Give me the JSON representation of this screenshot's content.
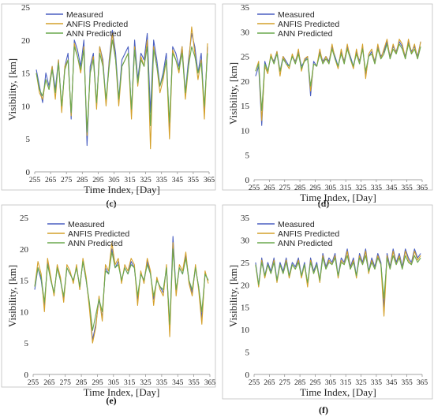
{
  "colors": {
    "measured": "#4a5fc1",
    "anfis": "#d4a02a",
    "ann": "#6aa84f",
    "frame": "#bfbfbf"
  },
  "chart_data": [
    {
      "type": "line",
      "panel_label": "(c)",
      "xlabel": "Time Index, [Day]",
      "ylabel": "Visibility, [km]",
      "xlim": [
        255,
        365
      ],
      "ylim": [
        0,
        25
      ],
      "xticks": [
        "255",
        "265",
        "275",
        "285",
        "295",
        "305",
        "315",
        "325",
        "335",
        "345",
        "355",
        "365"
      ],
      "yticks": [
        "0",
        "5",
        "10",
        "15",
        "20",
        "25"
      ],
      "legend_position": "top-left",
      "x": [
        256,
        258,
        260,
        262,
        264,
        266,
        268,
        270,
        272,
        274,
        276,
        278,
        280,
        282,
        284,
        286,
        288,
        290,
        292,
        294,
        296,
        298,
        300,
        302,
        304,
        306,
        308,
        310,
        312,
        314,
        316,
        318,
        320,
        322,
        324,
        326,
        328,
        330,
        332,
        334,
        336,
        338,
        340,
        342,
        344,
        346,
        348,
        350,
        352,
        354,
        356,
        358,
        360,
        362,
        364
      ],
      "series": [
        {
          "name": "Measured",
          "values": [
            15.5,
            13,
            10.5,
            15,
            13,
            16,
            12.5,
            17,
            9.5,
            16,
            18,
            8,
            20,
            18.5,
            16,
            20,
            4,
            16,
            18,
            10,
            19,
            17,
            10.5,
            17,
            21.5,
            18,
            11,
            17,
            18,
            19,
            9,
            20,
            14,
            18,
            17,
            21,
            9,
            20,
            17,
            13,
            15,
            18,
            6,
            19,
            18,
            16,
            19,
            12,
            17,
            21,
            19,
            15,
            18,
            9,
            19
          ]
        },
        {
          "name": "ANFIS Predicted",
          "values": [
            15,
            12,
            11,
            14,
            12.5,
            16,
            11,
            17,
            9,
            16,
            17,
            8.5,
            19.5,
            17.5,
            15,
            19,
            5.5,
            15,
            17.5,
            9.5,
            19,
            16.5,
            10,
            16.5,
            21,
            17,
            10,
            16,
            17,
            18,
            8,
            19,
            13,
            17.5,
            16,
            20,
            3.5,
            19,
            16,
            12,
            14,
            17,
            5,
            18.5,
            17,
            15,
            19,
            11,
            16,
            22,
            18,
            14,
            17,
            8,
            19.5
          ]
        },
        {
          "name": "ANN Predicted",
          "values": [
            15,
            12.5,
            11.5,
            14,
            12.5,
            15.5,
            12,
            16.5,
            10,
            15.5,
            17,
            9,
            19,
            17.5,
            15.5,
            18.5,
            6,
            15,
            17,
            10.5,
            18,
            16,
            11,
            16,
            20,
            17,
            11,
            16,
            17,
            18,
            9.5,
            18.5,
            13.5,
            17,
            16,
            19,
            7,
            18.5,
            16,
            13,
            14.5,
            17,
            7.5,
            18,
            17,
            15.5,
            18,
            12,
            16,
            19,
            17.5,
            15,
            16.5,
            10,
            18
          ]
        }
      ]
    },
    {
      "type": "line",
      "panel_label": "(d)",
      "xlabel": "Time Index, [Day]",
      "ylabel": "Visibility, [km]",
      "xlim": [
        255,
        365
      ],
      "ylim": [
        0,
        35
      ],
      "xticks": [
        "255",
        "265",
        "275",
        "285",
        "295",
        "305",
        "315",
        "325",
        "335",
        "345",
        "355",
        "365"
      ],
      "yticks": [
        "0",
        "5",
        "10",
        "15",
        "20",
        "25",
        "30",
        "35"
      ],
      "legend_position": "top-right",
      "x": [
        256,
        258,
        260,
        262,
        264,
        266,
        268,
        270,
        272,
        274,
        276,
        278,
        280,
        282,
        284,
        286,
        288,
        290,
        292,
        294,
        296,
        298,
        300,
        302,
        304,
        306,
        308,
        310,
        312,
        314,
        316,
        318,
        320,
        322,
        324,
        326,
        328,
        330,
        332,
        334,
        336,
        338,
        340,
        342,
        344,
        346,
        348,
        350,
        352,
        354,
        356,
        358,
        360,
        362,
        364
      ],
      "series": [
        {
          "name": "Measured",
          "values": [
            21,
            23,
            11,
            24,
            22,
            25,
            24,
            26,
            22,
            25,
            24,
            23,
            25,
            24,
            26,
            23,
            24,
            25,
            17,
            24,
            23,
            26,
            24,
            25,
            24,
            27,
            25,
            23,
            26,
            24,
            27,
            25,
            23,
            26,
            24,
            27,
            21,
            25,
            26,
            24,
            27,
            25,
            26,
            28,
            25,
            27,
            26,
            28,
            27,
            25,
            28,
            26,
            27,
            25,
            28
          ]
        },
        {
          "name": "ANFIS Predicted",
          "values": [
            22,
            24,
            12,
            23,
            21.5,
            25.5,
            23.5,
            26,
            21,
            25,
            23.5,
            22.5,
            25.5,
            23.5,
            26.5,
            22,
            24.5,
            25,
            18,
            23.5,
            23,
            26.5,
            23.5,
            25,
            23.5,
            27.5,
            24.5,
            22.5,
            26.5,
            23.5,
            27.5,
            24.5,
            22.5,
            26.5,
            23.5,
            27.5,
            20.5,
            25.5,
            26.5,
            23.5,
            27.5,
            24.5,
            26.5,
            28.5,
            24.5,
            27.5,
            25.5,
            28.5,
            27.5,
            24.5,
            28.5,
            25.5,
            27.5,
            24.5,
            28
          ]
        },
        {
          "name": "ANN Predicted",
          "values": [
            22,
            23.5,
            14,
            23.5,
            22,
            25,
            23.5,
            25.5,
            22,
            24.5,
            23.5,
            23,
            25,
            23.5,
            25.5,
            22.5,
            24,
            24.5,
            19,
            23.5,
            23,
            25.5,
            23.5,
            24.5,
            23.5,
            26.5,
            24.5,
            23,
            25.5,
            23.5,
            26.5,
            24.5,
            23,
            25.5,
            23.5,
            26.5,
            22,
            25,
            25.5,
            23.5,
            26.5,
            24.5,
            25.5,
            27.5,
            24.5,
            26.5,
            25.5,
            27.5,
            26.5,
            24.5,
            27.5,
            25.5,
            26.5,
            24.5,
            27
          ]
        }
      ]
    },
    {
      "type": "line",
      "panel_label": "(e)",
      "xlabel": "Time Index, [Day]",
      "ylabel": "Visibility, [km]",
      "xlim": [
        255,
        365
      ],
      "ylim": [
        0,
        25
      ],
      "xticks": [
        "255",
        "265",
        "275",
        "285",
        "295",
        "305",
        "315",
        "325",
        "335",
        "345",
        "355",
        "365"
      ],
      "yticks": [
        "0",
        "5",
        "10",
        "15",
        "20",
        "25"
      ],
      "legend_position": "top-left",
      "x": [
        256,
        258,
        260,
        262,
        264,
        266,
        268,
        270,
        272,
        274,
        276,
        278,
        280,
        282,
        284,
        286,
        288,
        290,
        292,
        294,
        296,
        298,
        300,
        302,
        304,
        306,
        308,
        310,
        312,
        314,
        316,
        318,
        320,
        322,
        324,
        326,
        328,
        330,
        332,
        334,
        336,
        338,
        340,
        342,
        344,
        346,
        348,
        350,
        352,
        354,
        356,
        358,
        360,
        362,
        364
      ],
      "series": [
        {
          "name": "Measured",
          "values": [
            13.5,
            17,
            15,
            11,
            18,
            15,
            13,
            17,
            15,
            12,
            17,
            16,
            15,
            17,
            14,
            18,
            15,
            11,
            5.5,
            8,
            12,
            9,
            17,
            16,
            20,
            17,
            18,
            15,
            17,
            16,
            18,
            17,
            12,
            16,
            15,
            18,
            16,
            12,
            15,
            14,
            13,
            17,
            7,
            22,
            13,
            17,
            16,
            19,
            15,
            13,
            17,
            14,
            9,
            16,
            15
          ]
        },
        {
          "name": "ANFIS Predicted",
          "values": [
            14,
            18,
            16,
            10,
            18.5,
            15.5,
            12.5,
            17.5,
            15.5,
            11.5,
            17.5,
            16.5,
            14.5,
            17.5,
            13.5,
            18.5,
            15.5,
            10.5,
            5,
            7.5,
            12.5,
            8.5,
            17.5,
            16.5,
            21,
            17.5,
            18.5,
            14.5,
            17.5,
            16.5,
            18.5,
            17.5,
            11,
            16.5,
            14.5,
            18.5,
            16.5,
            11,
            15.5,
            13.5,
            12.5,
            17.5,
            6,
            21,
            12.5,
            17.5,
            16.5,
            19.5,
            14.5,
            12.5,
            17.5,
            13.5,
            8,
            16.5,
            14.5
          ]
        },
        {
          "name": "ANN Predicted",
          "values": [
            14,
            17,
            15.5,
            11.5,
            17.5,
            15,
            13,
            17,
            15,
            12.5,
            17,
            16,
            15,
            17,
            14,
            18,
            15,
            11.5,
            7,
            9.5,
            12,
            10,
            16.5,
            16,
            19.5,
            17,
            17.5,
            15,
            17,
            16,
            17.5,
            17,
            12.5,
            16,
            15,
            17.5,
            16,
            12.5,
            15,
            14,
            13.5,
            17,
            8,
            20,
            13.5,
            17,
            16,
            18.5,
            15,
            13.5,
            17,
            14,
            10,
            16,
            15
          ]
        }
      ]
    },
    {
      "type": "line",
      "panel_label": "(f)",
      "xlabel": "Time Index, [Day]",
      "ylabel": "Visibility, [km]",
      "xlim": [
        255,
        365
      ],
      "ylim": [
        0,
        35
      ],
      "xticks": [
        "255",
        "265",
        "275",
        "285",
        "295",
        "305",
        "315",
        "325",
        "335",
        "345",
        "355",
        "365"
      ],
      "yticks": [
        "0",
        "5",
        "10",
        "15",
        "20",
        "25",
        "30",
        "35"
      ],
      "legend_position": "top-left",
      "x": [
        256,
        258,
        260,
        262,
        264,
        266,
        268,
        270,
        272,
        274,
        276,
        278,
        280,
        282,
        284,
        286,
        288,
        290,
        292,
        294,
        296,
        298,
        300,
        302,
        304,
        306,
        308,
        310,
        312,
        314,
        316,
        318,
        320,
        322,
        324,
        326,
        328,
        330,
        332,
        334,
        336,
        338,
        340,
        342,
        344,
        346,
        348,
        350,
        352,
        354,
        356,
        358,
        360,
        362,
        364
      ],
      "series": [
        {
          "name": "Measured",
          "values": [
            25,
            20,
            26,
            22,
            25,
            23,
            26,
            21,
            25,
            23,
            26,
            22,
            25,
            24,
            26,
            22,
            25,
            20,
            26,
            23,
            25,
            21,
            27,
            24,
            26,
            25,
            27,
            22,
            26,
            25,
            28,
            24,
            26,
            22,
            27,
            25,
            28,
            23,
            26,
            24,
            27,
            25,
            15,
            27,
            24,
            28,
            25,
            27,
            24,
            28,
            26,
            25,
            28,
            26,
            27
          ]
        },
        {
          "name": "ANFIS Predicted",
          "values": [
            24.5,
            19.5,
            25.5,
            21.5,
            24.5,
            22.5,
            25.5,
            20.5,
            24.5,
            22.5,
            25.5,
            21.5,
            24.5,
            23.5,
            25.5,
            21.5,
            24.5,
            19.5,
            25.5,
            22.5,
            24.5,
            20.5,
            26.5,
            23.5,
            25.5,
            24.5,
            26.5,
            21.5,
            25.5,
            24.5,
            27.5,
            23.5,
            25.5,
            21.5,
            26.5,
            24.5,
            27.5,
            22.5,
            25.5,
            23.5,
            26.5,
            24.5,
            13,
            26.5,
            23.5,
            27.5,
            24.5,
            26.5,
            23.5,
            27.5,
            25.5,
            24.5,
            27.5,
            25.5,
            26.5
          ]
        },
        {
          "name": "ANN Predicted",
          "values": [
            24.5,
            20,
            25,
            22,
            24.5,
            22.5,
            25,
            21,
            24.5,
            22.5,
            25,
            22,
            24.5,
            23.5,
            25,
            22,
            24.5,
            20.5,
            25,
            22.5,
            24.5,
            21,
            26,
            23.5,
            25,
            24.5,
            26,
            22,
            25,
            24.5,
            26.5,
            23.5,
            25,
            22,
            26,
            24.5,
            26.5,
            23,
            25,
            23.5,
            26,
            24.5,
            17,
            26,
            23.5,
            26.5,
            24.5,
            26,
            23.5,
            26.5,
            25,
            24.5,
            26.5,
            25,
            26
          ]
        }
      ]
    }
  ]
}
